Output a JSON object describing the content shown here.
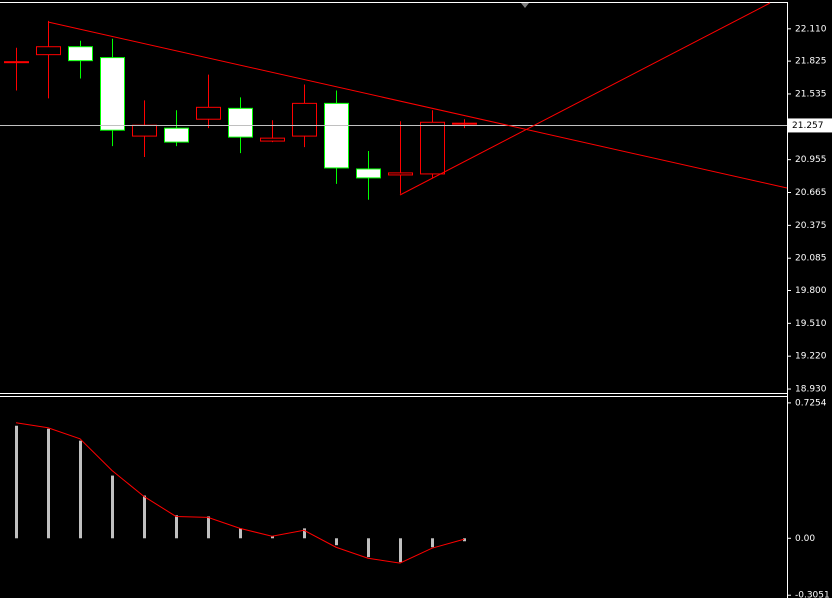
{
  "chart_data": [
    {
      "type": "candlestick",
      "open": [
        21.812,
        21.882,
        21.952,
        21.856,
        21.163,
        21.233,
        21.312,
        21.408,
        21.119,
        21.163,
        21.452,
        20.873,
        20.82,
        20.829,
        21.277
      ],
      "high": [
        21.943,
        22.18,
        22.005,
        22.022,
        21.478,
        21.391,
        21.706,
        21.505,
        21.303,
        21.619,
        21.566,
        21.031,
        21.294,
        21.391,
        21.312
      ],
      "low": [
        21.566,
        21.496,
        21.671,
        21.075,
        20.978,
        21.075,
        21.233,
        21.013,
        21.11,
        21.066,
        20.741,
        20.601,
        20.654,
        20.794,
        21.233
      ],
      "close": [
        21.82,
        21.952,
        21.829,
        21.215,
        21.259,
        21.11,
        21.417,
        21.154,
        21.145,
        21.452,
        20.882,
        20.794,
        20.838,
        21.285,
        21.268
      ],
      "up_color": "#ff0000",
      "up_fill": "#000000",
      "down_color": "#00ff00",
      "down_fill": "#ffffff",
      "doji_color": "#ff0000",
      "ylim": [
        18.895,
        22.338
      ],
      "yticks": [
        {
          "value": 22.11,
          "label": "22.110"
        },
        21.825,
        21.535,
        {
          "value": 20.955,
          "label": "20.955"
        },
        20.665,
        20.375,
        20.085,
        {
          "value": 19.8,
          "label": "19.800"
        },
        {
          "value": 19.51,
          "label": "19.510"
        },
        {
          "value": 19.22,
          "label": "19.220"
        },
        {
          "value": 18.93,
          "label": "18.930"
        }
      ],
      "current_price": 21.257
    },
    {
      "type": "bar",
      "series": [
        {
          "color": "#c0c0c0",
          "values": [
            0.603,
            0.587,
            0.523,
            0.336,
            0.229,
            0.123,
            0.117,
            0.053,
            0.011,
            0.053,
            -0.037,
            -0.101,
            -0.128,
            -0.048,
            -0.016
          ]
        },
        {
          "color": "#ff0000",
          "values": [
            0.619,
            0.592,
            0.533,
            0.363,
            0.224,
            0.117,
            0.112,
            0.053,
            0.011,
            0.043,
            -0.048,
            -0.107,
            -0.133,
            -0.053,
            -0.005
          ]
        }
      ],
      "ylim": [
        -0.32,
        0.757
      ],
      "yticks": [
        0.7254,
        {
          "value": 0,
          "label": "0.00"
        },
        -0.3051
      ]
    }
  ]
}
